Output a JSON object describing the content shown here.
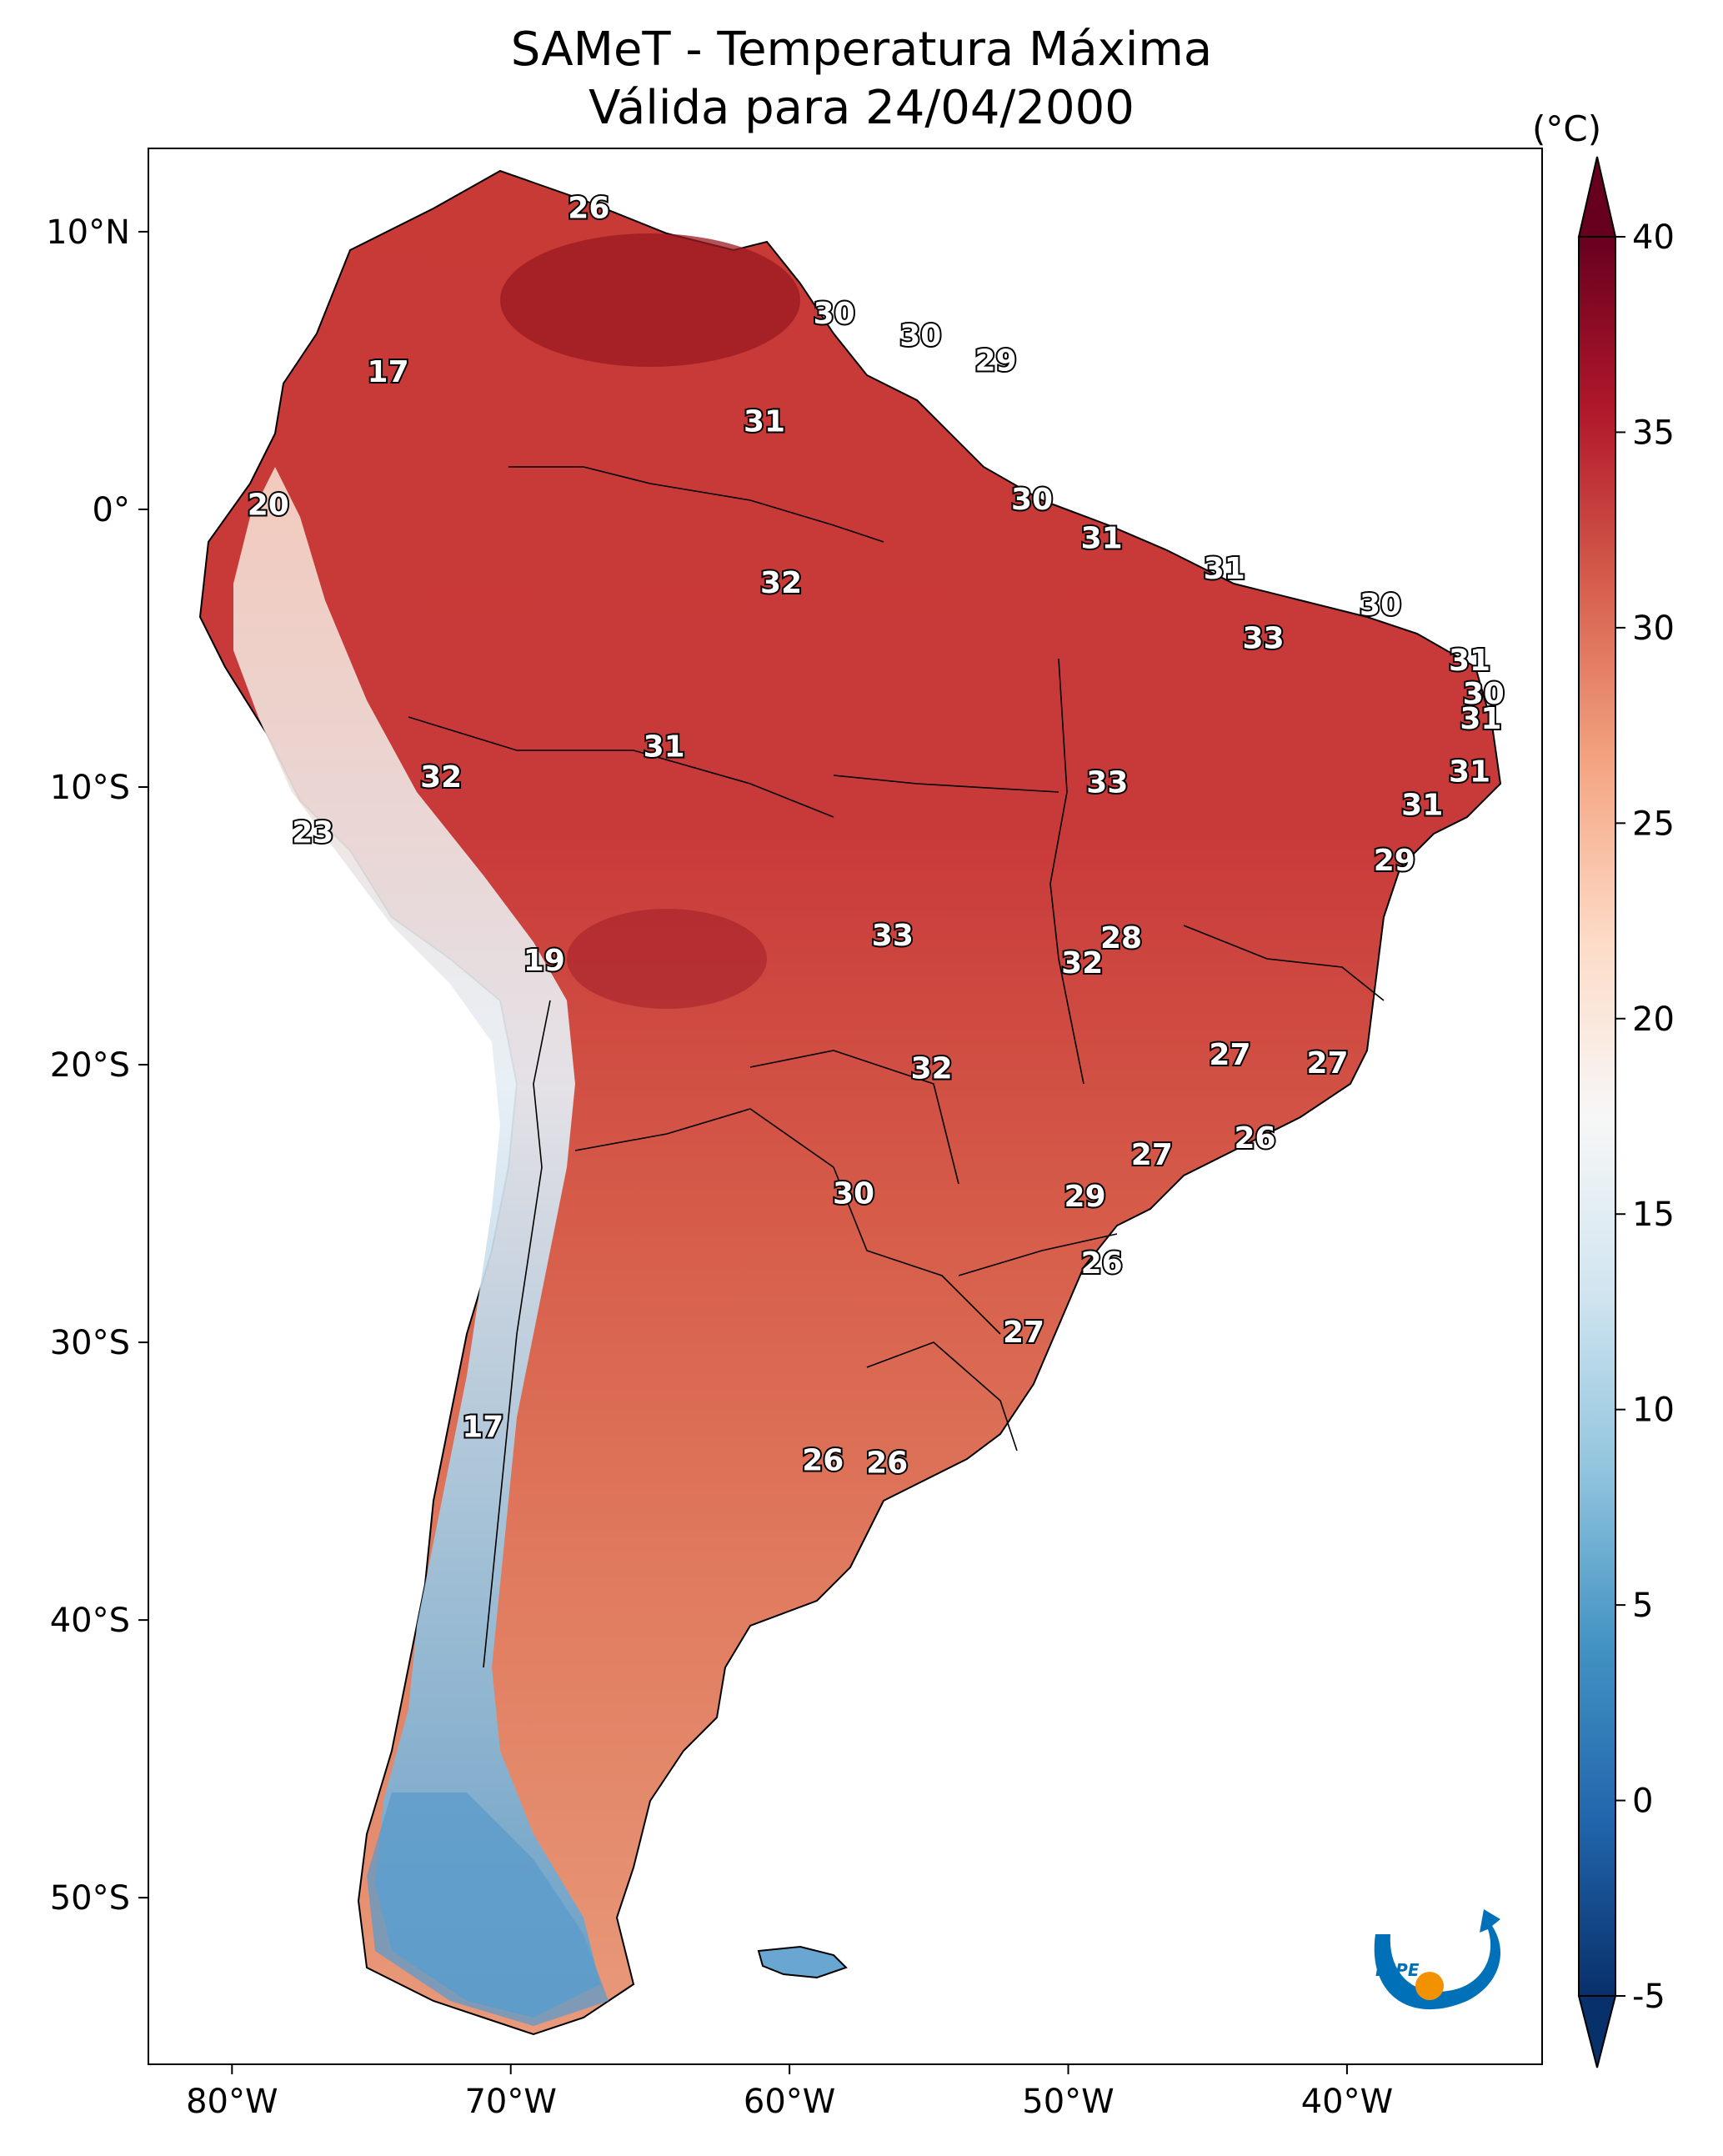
{
  "title": {
    "line1": "SAMeT - Temperatura Máxima",
    "line2": "Válida para 24/04/2000"
  },
  "colorbar": {
    "unit": "(°C)",
    "ticks": [
      "40",
      "35",
      "30",
      "25",
      "20",
      "15",
      "10",
      "5",
      "0",
      "-5"
    ],
    "vmin": -5,
    "vmax": 40,
    "stops": [
      "#08306b",
      "#2166ac",
      "#4393c3",
      "#92c5de",
      "#d1e5f0",
      "#f7f7f7",
      "#fddbc7",
      "#f4a582",
      "#d6604d",
      "#b2182b",
      "#67001f"
    ]
  },
  "axes": {
    "lon_labels": [
      "80°W",
      "70°W",
      "60°W",
      "50°W",
      "40°W"
    ],
    "lat_labels": [
      "10°N",
      "0°",
      "10°S",
      "20°S",
      "30°S",
      "40°S",
      "50°S"
    ],
    "lon_range": [
      -83,
      -33
    ],
    "lat_range": [
      -56,
      13
    ]
  },
  "contour_labels": [
    {
      "text": "26",
      "lon": -67.2,
      "lat": 10.5
    },
    {
      "text": "17",
      "lon": -74.4,
      "lat": 4.6
    },
    {
      "text": "30",
      "lon": -58.4,
      "lat": 6.7
    },
    {
      "text": "30",
      "lon": -55.3,
      "lat": 5.9
    },
    {
      "text": "29",
      "lon": -52.6,
      "lat": 5.0
    },
    {
      "text": "31",
      "lon": -60.9,
      "lat": 2.8
    },
    {
      "text": "20",
      "lon": -78.7,
      "lat": -0.2
    },
    {
      "text": "30",
      "lon": -51.3,
      "lat": 0.0
    },
    {
      "text": "31",
      "lon": -48.8,
      "lat": -1.4
    },
    {
      "text": "32",
      "lon": -60.3,
      "lat": -3.0
    },
    {
      "text": "31",
      "lon": -44.4,
      "lat": -2.5
    },
    {
      "text": "30",
      "lon": -38.8,
      "lat": -3.8
    },
    {
      "text": "33",
      "lon": -43.0,
      "lat": -5.0
    },
    {
      "text": "31",
      "lon": -35.6,
      "lat": -5.8
    },
    {
      "text": "30",
      "lon": -35.1,
      "lat": -7.0
    },
    {
      "text": "31",
      "lon": -35.2,
      "lat": -7.9
    },
    {
      "text": "31",
      "lon": -64.5,
      "lat": -8.9
    },
    {
      "text": "32",
      "lon": -72.5,
      "lat": -10.0
    },
    {
      "text": "31",
      "lon": -35.6,
      "lat": -9.8
    },
    {
      "text": "33",
      "lon": -48.6,
      "lat": -10.2
    },
    {
      "text": "31",
      "lon": -37.3,
      "lat": -11.0
    },
    {
      "text": "23",
      "lon": -77.1,
      "lat": -12.0
    },
    {
      "text": "29",
      "lon": -38.3,
      "lat": -13.0
    },
    {
      "text": "33",
      "lon": -56.3,
      "lat": -15.7
    },
    {
      "text": "28",
      "lon": -48.1,
      "lat": -15.8
    },
    {
      "text": "32",
      "lon": -49.5,
      "lat": -16.7
    },
    {
      "text": "19",
      "lon": -68.8,
      "lat": -16.6
    },
    {
      "text": "27",
      "lon": -44.2,
      "lat": -20.0
    },
    {
      "text": "27",
      "lon": -40.7,
      "lat": -20.3
    },
    {
      "text": "32",
      "lon": -54.9,
      "lat": -20.5
    },
    {
      "text": "26",
      "lon": -43.3,
      "lat": -23.0
    },
    {
      "text": "27",
      "lon": -47.0,
      "lat": -23.6
    },
    {
      "text": "30",
      "lon": -57.7,
      "lat": -25.0
    },
    {
      "text": "29",
      "lon": -49.4,
      "lat": -25.1
    },
    {
      "text": "26",
      "lon": -48.8,
      "lat": -27.5
    },
    {
      "text": "27",
      "lon": -51.6,
      "lat": -30.0
    },
    {
      "text": "17",
      "lon": -71.0,
      "lat": -33.4
    },
    {
      "text": "26",
      "lon": -58.8,
      "lat": -34.6
    },
    {
      "text": "26",
      "lon": -56.5,
      "lat": -34.7
    }
  ],
  "logo": {
    "text": "INPE",
    "color": "#0070b8",
    "accent": "#f39200"
  }
}
